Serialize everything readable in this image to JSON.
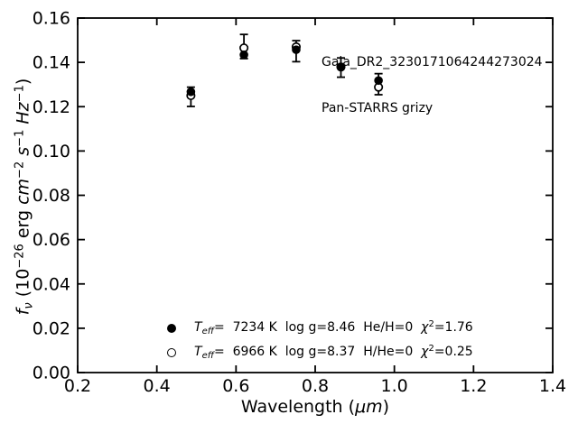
{
  "chart_data": {
    "type": "scatter",
    "x": [
      0.486,
      0.62,
      0.752,
      0.865,
      0.96
    ],
    "series": [
      {
        "name": "Teff= 7234 K  log g=8.46  He/H=0  chi2=1.76",
        "marker": "filled-circle",
        "values": [
          0.1267,
          0.1434,
          0.1457,
          0.1379,
          0.1318
        ]
      },
      {
        "name": "Teff= 6966 K  log g=8.37  H/He=0  chi2=0.25",
        "marker": "open-circle",
        "values": [
          0.125,
          0.1465,
          0.147,
          0.1379,
          0.1288
        ]
      }
    ],
    "error_bars": {
      "top": [
        0.1288,
        0.1526,
        0.1498,
        0.142,
        0.1349
      ],
      "bottom": [
        0.1201,
        0.1417,
        0.1403,
        0.1333,
        0.1254
      ]
    },
    "title": "",
    "xlabel": "Wavelength (μm)",
    "ylabel": "fν (10⁻²⁶ erg cm⁻² s⁻¹ Hz⁻¹)",
    "xlim": [
      0.2,
      1.4
    ],
    "ylim": [
      0.0,
      0.16
    ],
    "xticks": [
      0.2,
      0.4,
      0.6,
      0.8,
      1.0,
      1.2,
      1.4
    ],
    "yticks": [
      0.0,
      0.02,
      0.04,
      0.06,
      0.08,
      0.1,
      0.12,
      0.14,
      0.16
    ],
    "grid": false,
    "legend_position": "lower center",
    "annotations": [
      "Gaia_DR2_3230171064244273024",
      "Pan-STARRS grizy"
    ],
    "colors": {
      "foreground": "#000000",
      "background": "#ffffff"
    }
  },
  "annotation": {
    "line1": "Gaia_DR2_3230171064244273024",
    "line2": "Pan-STARRS grizy"
  },
  "legend": {
    "rows": [
      {
        "t": "T",
        "sub": "eff",
        "mid": "=  7234 K  log g=8.46  He/H=0  ",
        "chi": "χ",
        "sup": "2",
        "tail": "=1.76"
      },
      {
        "t": "T",
        "sub": "eff",
        "mid": "=  6966 K  log g=8.37  H/He=0  ",
        "chi": "χ",
        "sup": "2",
        "tail": "=0.25"
      }
    ]
  },
  "xlabel": {
    "pre": "Wavelength (",
    "mu": "μm",
    "close": ")"
  },
  "ylabel": {
    "f": "f",
    "nu": "ν",
    "pre": " (10",
    "exp0": "−26",
    "erg": " erg ",
    "cm": "cm",
    "cmexp": "−2",
    "s": " s",
    "sexp": "−1",
    "hz": " Hz",
    "hzexp": "−1",
    "close": ")"
  }
}
